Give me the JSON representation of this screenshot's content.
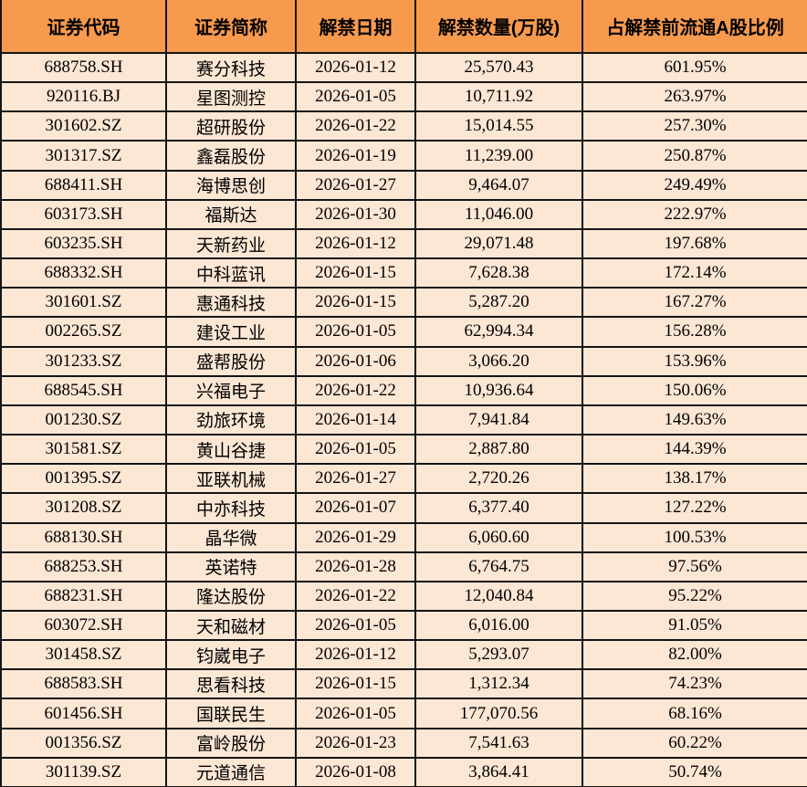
{
  "chart_data": {
    "type": "table",
    "columns": [
      "证券代码",
      "证券简称",
      "解禁日期",
      "解禁数量(万股)",
      "占解禁前流通A股比例"
    ],
    "rows": [
      [
        "688758.SH",
        "赛分科技",
        "2026-01-12",
        "25,570.43",
        "601.95%"
      ],
      [
        "920116.BJ",
        "星图测控",
        "2026-01-05",
        "10,711.92",
        "263.97%"
      ],
      [
        "301602.SZ",
        "超研股份",
        "2026-01-22",
        "15,014.55",
        "257.30%"
      ],
      [
        "301317.SZ",
        "鑫磊股份",
        "2026-01-19",
        "11,239.00",
        "250.87%"
      ],
      [
        "688411.SH",
        "海博思创",
        "2026-01-27",
        "9,464.07",
        "249.49%"
      ],
      [
        "603173.SH",
        "福斯达",
        "2026-01-30",
        "11,046.00",
        "222.97%"
      ],
      [
        "603235.SH",
        "天新药业",
        "2026-01-12",
        "29,071.48",
        "197.68%"
      ],
      [
        "688332.SH",
        "中科蓝讯",
        "2026-01-15",
        "7,628.38",
        "172.14%"
      ],
      [
        "301601.SZ",
        "惠通科技",
        "2026-01-15",
        "5,287.20",
        "167.27%"
      ],
      [
        "002265.SZ",
        "建设工业",
        "2026-01-05",
        "62,994.34",
        "156.28%"
      ],
      [
        "301233.SZ",
        "盛帮股份",
        "2026-01-06",
        "3,066.20",
        "153.96%"
      ],
      [
        "688545.SH",
        "兴福电子",
        "2026-01-22",
        "10,936.64",
        "150.06%"
      ],
      [
        "001230.SZ",
        "劲旅环境",
        "2026-01-14",
        "7,941.84",
        "149.63%"
      ],
      [
        "301581.SZ",
        "黄山谷捷",
        "2026-01-05",
        "2,887.80",
        "144.39%"
      ],
      [
        "001395.SZ",
        "亚联机械",
        "2026-01-27",
        "2,720.26",
        "138.17%"
      ],
      [
        "301208.SZ",
        "中亦科技",
        "2026-01-07",
        "6,377.40",
        "127.22%"
      ],
      [
        "688130.SH",
        "晶华微",
        "2026-01-29",
        "6,060.60",
        "100.53%"
      ],
      [
        "688253.SH",
        "英诺特",
        "2026-01-28",
        "6,764.75",
        "97.56%"
      ],
      [
        "688231.SH",
        "隆达股份",
        "2026-01-22",
        "12,040.84",
        "95.22%"
      ],
      [
        "603072.SH",
        "天和磁材",
        "2026-01-05",
        "6,016.00",
        "91.05%"
      ],
      [
        "301458.SZ",
        "钧崴电子",
        "2026-01-12",
        "5,293.07",
        "82.00%"
      ],
      [
        "688583.SH",
        "思看科技",
        "2026-01-15",
        "1,312.34",
        "74.23%"
      ],
      [
        "601456.SH",
        "国联民生",
        "2026-01-05",
        "177,070.56",
        "68.16%"
      ],
      [
        "001356.SZ",
        "富岭股份",
        "2026-01-23",
        "7,541.63",
        "60.22%"
      ],
      [
        "301139.SZ",
        "元道通信",
        "2026-01-08",
        "3,864.41",
        "50.74%"
      ]
    ]
  },
  "colors": {
    "header_bg": "#f79a4d",
    "row_bg": "#fce6d4",
    "border": "#141414",
    "text": "#000000"
  }
}
